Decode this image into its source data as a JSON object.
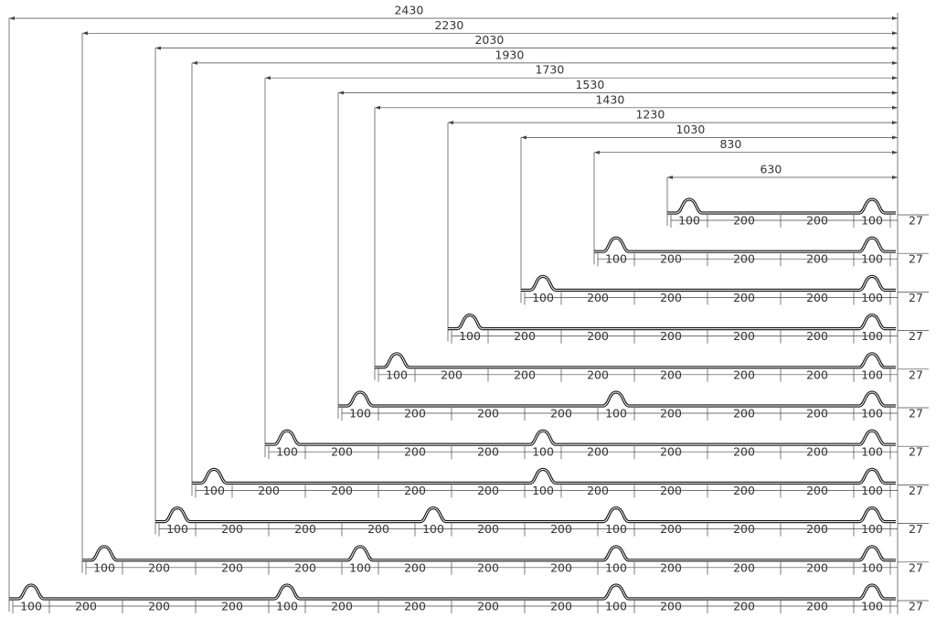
{
  "overall_dimensions": [
    2430,
    2230,
    2030,
    1930,
    1730,
    1530,
    1430,
    1230,
    1030,
    830,
    630
  ],
  "profiles": [
    {
      "segments": [
        100,
        200,
        200,
        100
      ],
      "height": 27
    },
    {
      "segments": [
        100,
        200,
        200,
        200,
        100
      ],
      "height": 27
    },
    {
      "segments": [
        100,
        200,
        200,
        200,
        200,
        100
      ],
      "height": 27
    },
    {
      "segments": [
        100,
        200,
        200,
        200,
        200,
        200,
        100
      ],
      "height": 27
    },
    {
      "segments": [
        100,
        200,
        200,
        200,
        200,
        200,
        200,
        100
      ],
      "height": 27
    },
    {
      "segments": [
        100,
        200,
        200,
        200,
        100,
        200,
        200,
        200,
        100
      ],
      "height": 27
    },
    {
      "segments": [
        100,
        200,
        200,
        200,
        100,
        200,
        200,
        200,
        200,
        100
      ],
      "height": 27
    },
    {
      "segments": [
        100,
        200,
        200,
        200,
        200,
        100,
        200,
        200,
        200,
        200,
        100
      ],
      "height": 27
    },
    {
      "segments": [
        100,
        200,
        200,
        200,
        100,
        200,
        200,
        100,
        200,
        200,
        200,
        100
      ],
      "height": 27
    },
    {
      "segments": [
        100,
        200,
        200,
        200,
        100,
        200,
        200,
        200,
        100,
        200,
        200,
        200,
        100
      ],
      "height": 27
    },
    {
      "segments": [
        100,
        200,
        200,
        200,
        100,
        200,
        200,
        200,
        200,
        100,
        200,
        200,
        200,
        100
      ],
      "height": 27
    }
  ]
}
